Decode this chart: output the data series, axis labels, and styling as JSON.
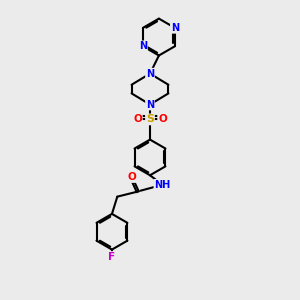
{
  "background_color": "#ebebeb",
  "bond_color": "#000000",
  "atom_colors": {
    "N_blue": "#0000FF",
    "O_red": "#FF0000",
    "S_yellow": "#C8A000",
    "F_magenta": "#CC00CC",
    "NH_blue": "#0000FF",
    "C": "#000000"
  },
  "figsize": [
    3.0,
    3.0
  ],
  "dpi": 100,
  "xlim": [
    0,
    10
  ],
  "ylim": [
    0,
    10
  ]
}
